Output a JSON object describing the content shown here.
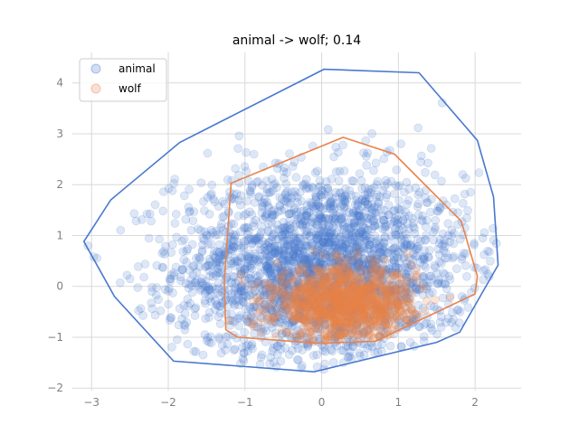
{
  "chart_data": {
    "type": "scatter",
    "title": "animal -> wolf; 0.14",
    "xlabel": "",
    "ylabel": "",
    "xlim": [
      -3.25,
      2.6
    ],
    "ylim": [
      -2.05,
      4.6
    ],
    "xticks": [
      -3,
      -2,
      -1,
      0,
      1,
      2
    ],
    "yticks": [
      -2,
      -1,
      0,
      1,
      2,
      3,
      4
    ],
    "xtick_labels": [
      "−3",
      "−2",
      "−1",
      "0",
      "1",
      "2"
    ],
    "ytick_labels": [
      "−2",
      "−1",
      "0",
      "1",
      "2",
      "3",
      "4"
    ],
    "grid": true,
    "legend_position": "top-left",
    "series": [
      {
        "name": "animal",
        "color": "#4878cf",
        "hull": [
          [
            0.03,
            4.27
          ],
          [
            1.27,
            4.2
          ],
          [
            2.03,
            2.87
          ],
          [
            2.24,
            1.76
          ],
          [
            2.3,
            0.42
          ],
          [
            1.8,
            -0.9
          ],
          [
            1.5,
            -1.1
          ],
          [
            -0.1,
            -1.68
          ],
          [
            -1.93,
            -1.47
          ],
          [
            -2.7,
            -0.2
          ],
          [
            -3.1,
            0.88
          ],
          [
            -2.75,
            1.7
          ],
          [
            -1.85,
            2.83
          ]
        ],
        "cloud_center": [
          0.0,
          0.35
        ],
        "cloud_spread": [
          0.95,
          0.95
        ]
      },
      {
        "name": "wolf",
        "color": "#e8834a",
        "hull": [
          [
            0.28,
            2.93
          ],
          [
            0.95,
            2.6
          ],
          [
            1.82,
            1.28
          ],
          [
            2.03,
            0.2
          ],
          [
            2.0,
            -0.15
          ],
          [
            0.7,
            -1.08
          ],
          [
            -0.05,
            -1.12
          ],
          [
            -1.1,
            -1.0
          ],
          [
            -1.25,
            -0.85
          ],
          [
            -1.27,
            0.08
          ],
          [
            -1.18,
            2.03
          ]
        ],
        "cloud_center": [
          0.3,
          -0.35
        ],
        "cloud_spread": [
          0.45,
          0.35
        ]
      }
    ]
  }
}
